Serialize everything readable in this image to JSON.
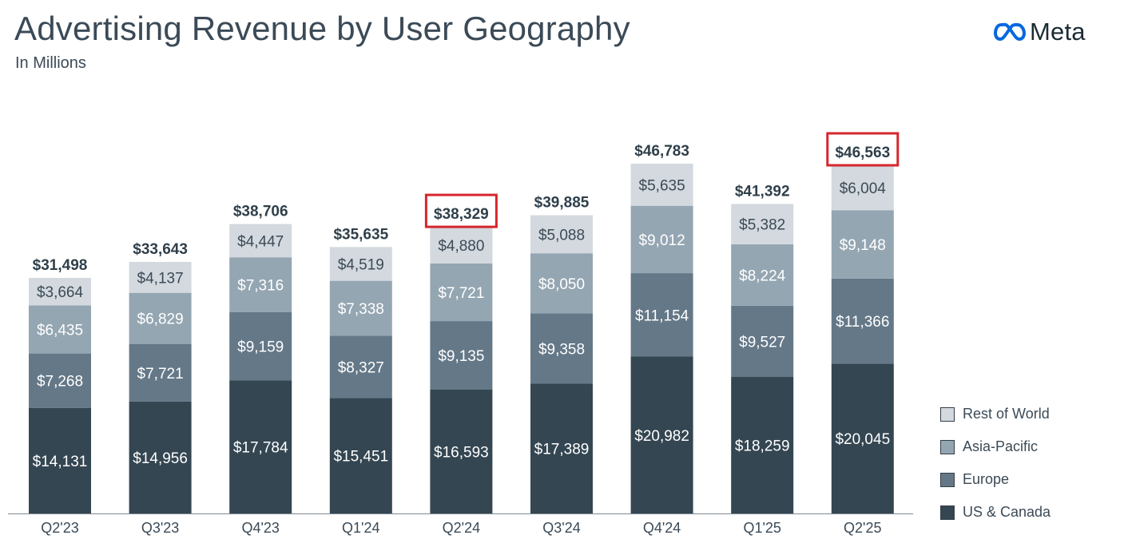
{
  "header": {
    "title": "Advertising Revenue by User Geography",
    "subtitle": "In Millions"
  },
  "logo": {
    "icon": "meta-infinity-icon",
    "text": "Meta",
    "color": "#0668E1"
  },
  "colors": {
    "us_canada": "#344652",
    "europe": "#647888",
    "asia_pacific": "#94a6b2",
    "rest_of_world": "#d3d9de",
    "highlight": "#d6262d"
  },
  "chart_data": {
    "type": "bar",
    "stacked": true,
    "categories": [
      "Q2'23",
      "Q3'23",
      "Q4'23",
      "Q1'24",
      "Q2'24",
      "Q3'24",
      "Q4'24",
      "Q1'25",
      "Q2'25"
    ],
    "series": [
      {
        "name": "US & Canada",
        "values": [
          14131,
          14956,
          17784,
          15451,
          16593,
          17389,
          20982,
          18259,
          20045
        ],
        "labels": [
          "$14,131",
          "$14,956",
          "$17,784",
          "$15,451",
          "$16,593",
          "$17,389",
          "$20,982",
          "$18,259",
          "$20,045"
        ]
      },
      {
        "name": "Europe",
        "values": [
          7268,
          7721,
          9159,
          8327,
          9135,
          9358,
          11154,
          9527,
          11366
        ],
        "labels": [
          "$7,268",
          "$7,721",
          "$9,159",
          "$8,327",
          "$9,135",
          "$9,358",
          "$11,154",
          "$9,527",
          "$11,366"
        ]
      },
      {
        "name": "Asia-Pacific",
        "values": [
          6435,
          6829,
          7316,
          7338,
          7721,
          8050,
          9012,
          8224,
          9148
        ],
        "labels": [
          "$6,435",
          "$6,829",
          "$7,316",
          "$7,338",
          "$7,721",
          "$8,050",
          "$9,012",
          "$8,224",
          "$9,148"
        ]
      },
      {
        "name": "Rest of World",
        "values": [
          3664,
          4137,
          4447,
          4519,
          4880,
          5088,
          5635,
          5382,
          6004
        ],
        "labels": [
          "$3,664",
          "$4,137",
          "$4,447",
          "$4,519",
          "$4,880",
          "$5,088",
          "$5,635",
          "$5,382",
          "$6,004"
        ]
      }
    ],
    "totals": [
      31498,
      33643,
      38706,
      35635,
      38329,
      39885,
      46783,
      41392,
      46563
    ],
    "total_labels": [
      "$31,498",
      "$33,643",
      "$38,706",
      "$35,635",
      "$38,329",
      "$39,885",
      "$46,783",
      "$41,392",
      "$46,563"
    ],
    "highlighted_categories": [
      "Q2'24",
      "Q2'25"
    ],
    "ylim": [
      0,
      50000
    ],
    "grid": false,
    "legend_position": "right"
  },
  "legend": {
    "items": [
      {
        "label": "Rest of World",
        "color": "#d3d9de"
      },
      {
        "label": "Asia-Pacific",
        "color": "#94a6b2"
      },
      {
        "label": "Europe",
        "color": "#647888"
      },
      {
        "label": "US & Canada",
        "color": "#344652"
      }
    ]
  }
}
